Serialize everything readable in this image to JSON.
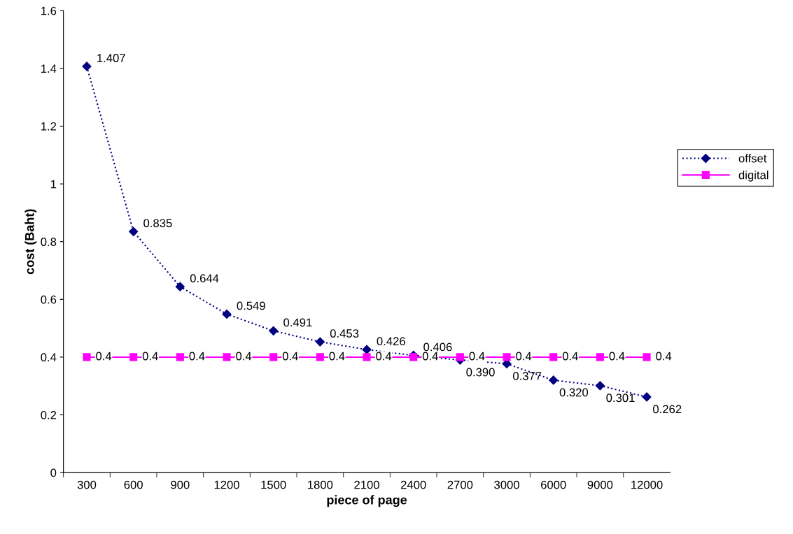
{
  "chart_data": {
    "type": "line",
    "xlabel": "piece of page",
    "ylabel": "cost (Baht)",
    "categories": [
      "300",
      "600",
      "900",
      "1200",
      "1500",
      "1800",
      "2100",
      "2400",
      "2700",
      "3000",
      "6000",
      "9000",
      "12000"
    ],
    "series": [
      {
        "name": "offset",
        "color": "#000080",
        "marker": "diamond",
        "line_style": "dotted",
        "values": [
          1.407,
          0.835,
          0.644,
          0.549,
          0.491,
          0.453,
          0.426,
          0.406,
          0.39,
          0.377,
          0.32,
          0.301,
          0.262
        ],
        "value_labels": [
          "1.407",
          "0.835",
          "0.644",
          "0.549",
          "0.491",
          "0.453",
          "0.426",
          "0.406",
          "0.390",
          "0.377",
          "0.320",
          "0.301",
          "0.262"
        ]
      },
      {
        "name": "digital",
        "color": "#ff00ff",
        "marker": "square",
        "line_style": "solid",
        "values": [
          0.4,
          0.4,
          0.4,
          0.4,
          0.4,
          0.4,
          0.4,
          0.4,
          0.4,
          0.4,
          0.4,
          0.4,
          0.4
        ],
        "value_labels": [
          "0.4",
          "0.4",
          "0.4",
          "0.4",
          "0.4",
          "0.4",
          "0.4",
          "0.4",
          "0.4",
          "0.4",
          "0.4",
          "0.4",
          "0.4"
        ]
      }
    ],
    "ylim": [
      0,
      1.6
    ],
    "yticks": [
      0,
      0.2,
      0.4,
      0.6,
      0.8,
      1,
      1.2,
      1.4,
      1.6
    ],
    "grid": false,
    "legend": "right"
  }
}
